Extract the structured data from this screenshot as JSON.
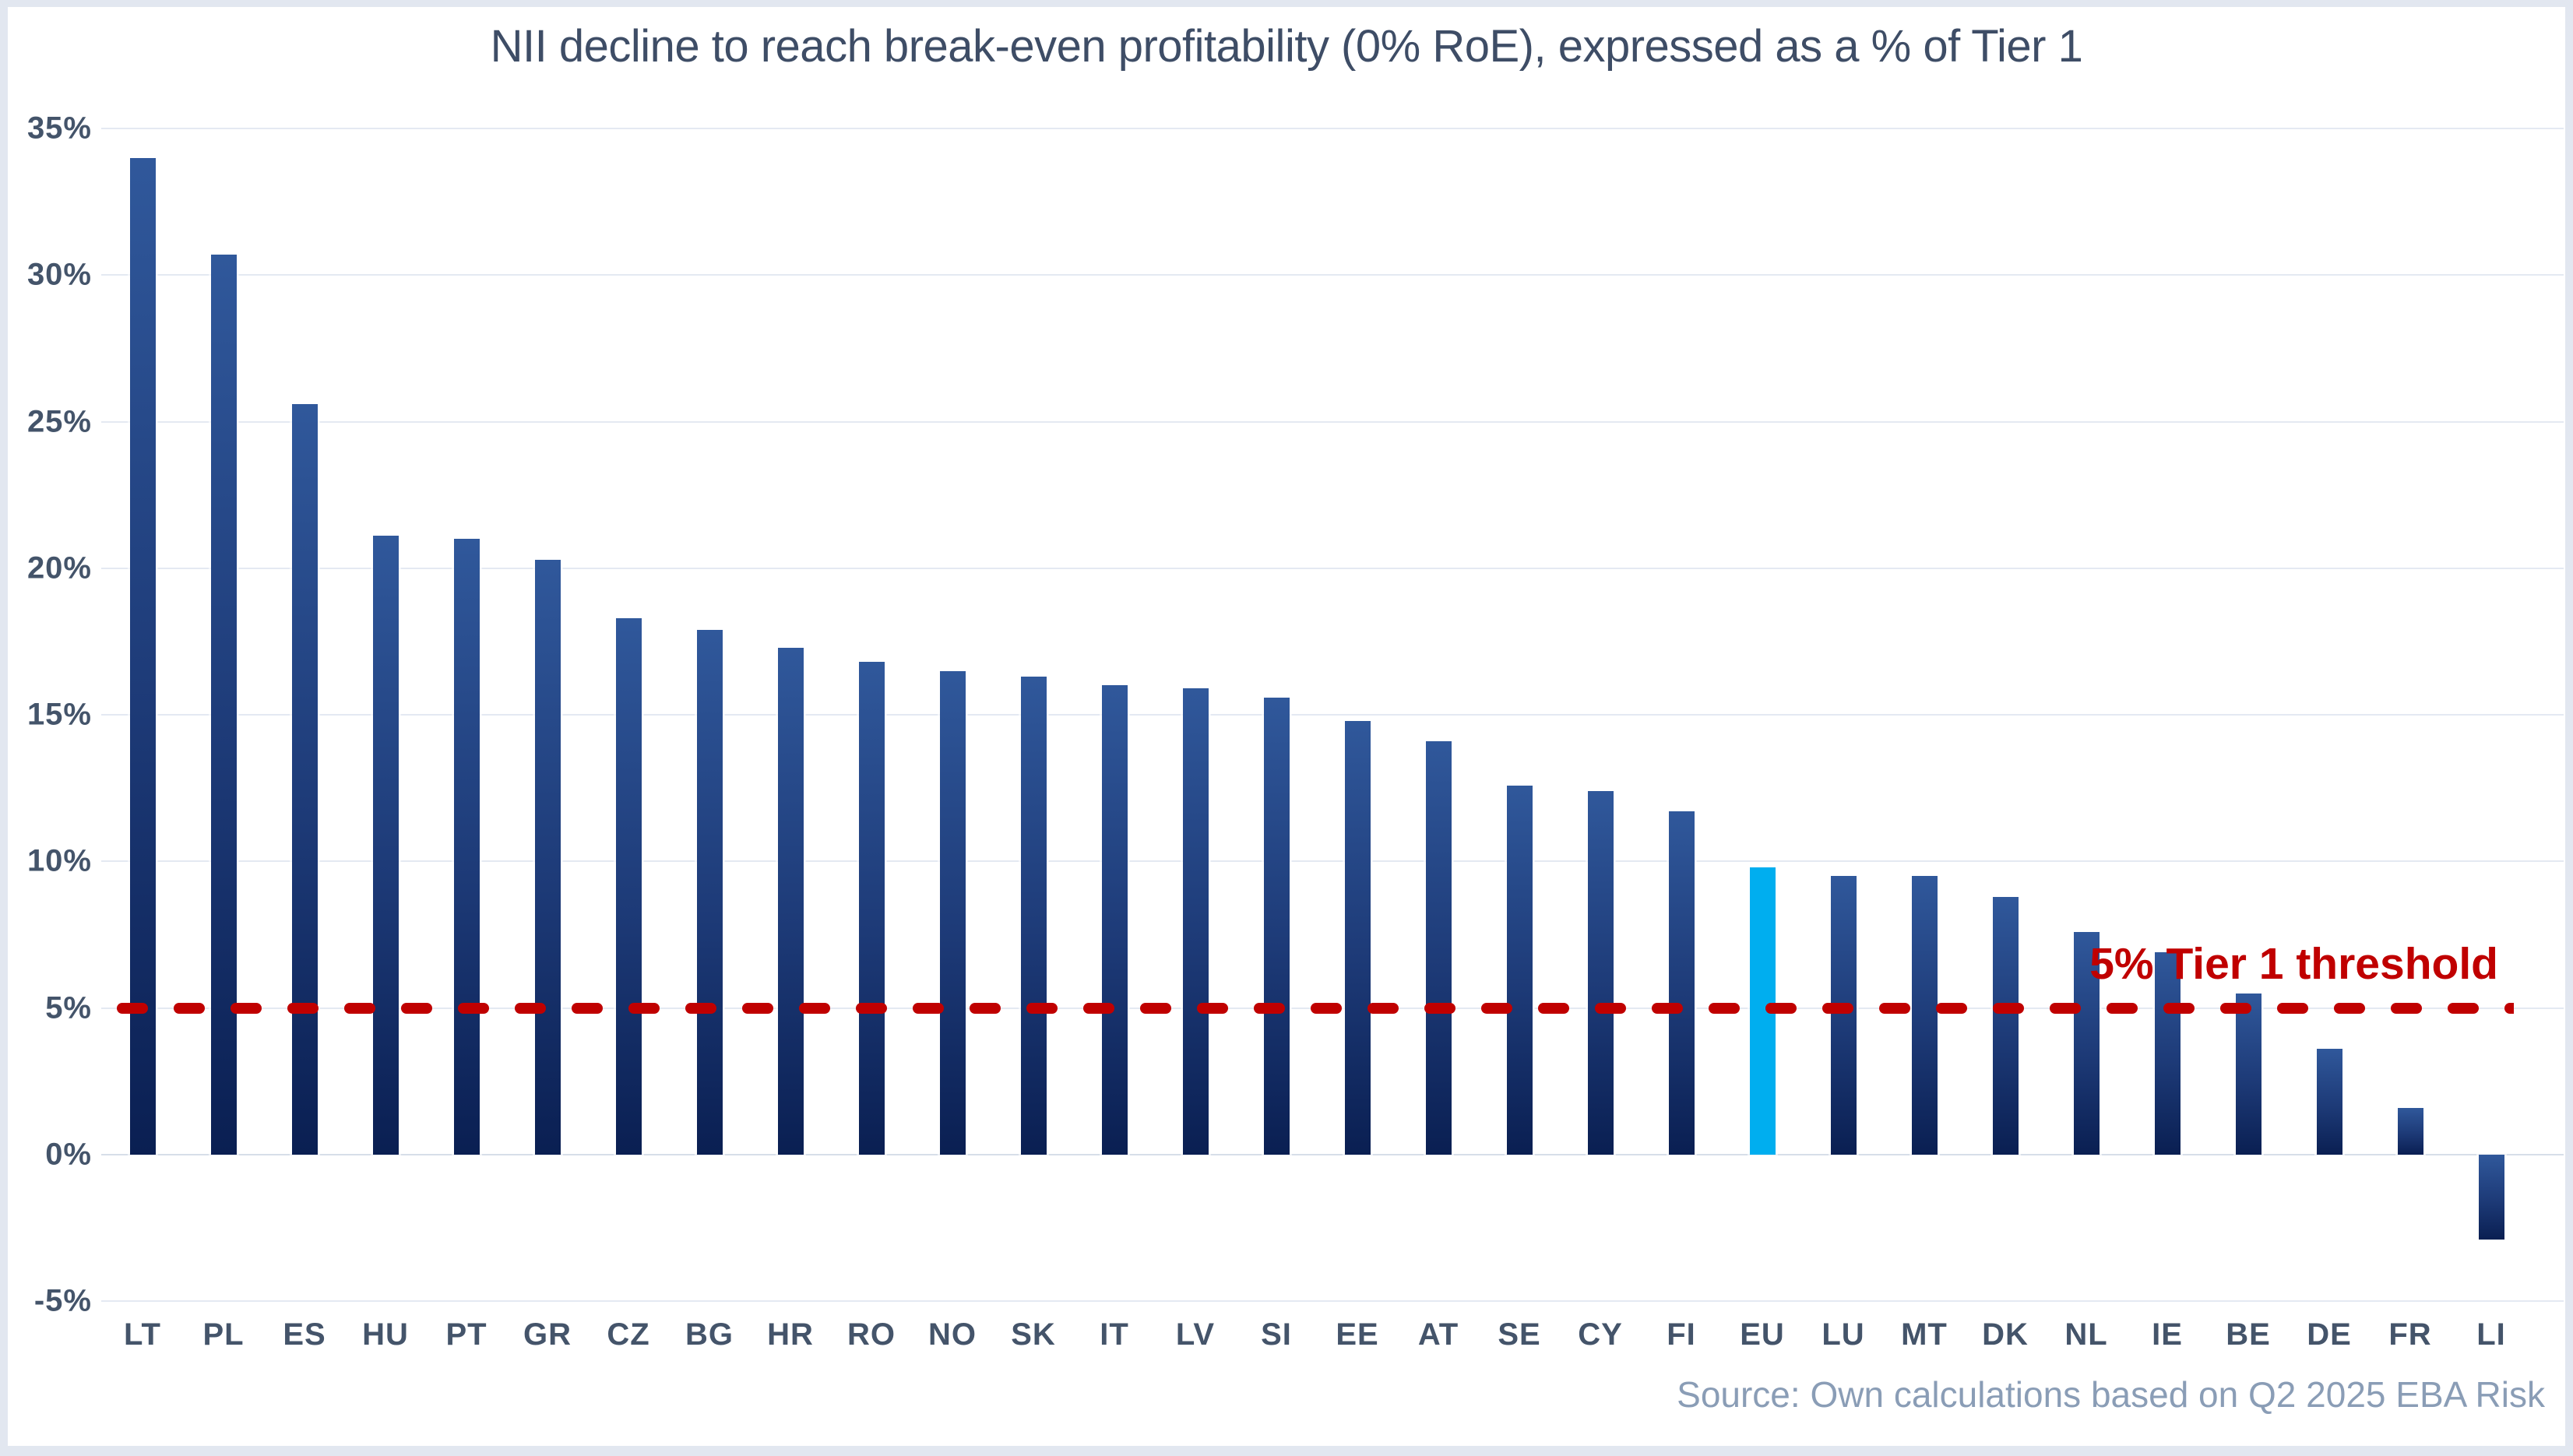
{
  "chart_data": {
    "type": "bar",
    "title": "NII decline to reach break-even profitability (0% RoE), expressed as a % of Tier 1",
    "categories": [
      "LT",
      "PL",
      "ES",
      "HU",
      "PT",
      "GR",
      "CZ",
      "BG",
      "HR",
      "RO",
      "NO",
      "SK",
      "IT",
      "LV",
      "SI",
      "EE",
      "AT",
      "SE",
      "CY",
      "FI",
      "EU",
      "LU",
      "MT",
      "DK",
      "NL",
      "IE",
      "BE",
      "DE",
      "FR",
      "LI"
    ],
    "values": [
      34.0,
      30.7,
      25.6,
      21.1,
      21.0,
      20.3,
      18.3,
      17.9,
      17.3,
      16.8,
      16.5,
      16.3,
      16.0,
      15.9,
      15.6,
      14.8,
      14.1,
      12.6,
      12.4,
      11.7,
      9.8,
      9.5,
      9.5,
      8.8,
      7.6,
      6.9,
      5.5,
      3.6,
      1.6,
      -2.9
    ],
    "highlight_category": "EU",
    "unit": "%",
    "ylim": [
      -5,
      35
    ],
    "yticks": [
      35,
      30,
      25,
      20,
      15,
      10,
      5,
      0,
      -5
    ],
    "ytick_labels": [
      "35%",
      "30%",
      "25%",
      "20%",
      "15%",
      "10%",
      "5%",
      "0%",
      "-5%"
    ],
    "grid": "horizontal",
    "legend": "none",
    "colors": {
      "bar_gradient_top": "#30589B",
      "bar_gradient_bottom": "#0A1F52",
      "highlight_bar": "#00AEEF",
      "threshold": "#C00000",
      "title_text": "#3E4D66",
      "axis_text": "#44546A",
      "source_text": "#8A9DB6",
      "gridline": "#E4E9F2"
    },
    "threshold": {
      "value": 5,
      "style": "dashed",
      "label": "5% Tier 1 threshold"
    },
    "source": "Source: Own calculations based on Q2 2025 EBA Risk"
  }
}
